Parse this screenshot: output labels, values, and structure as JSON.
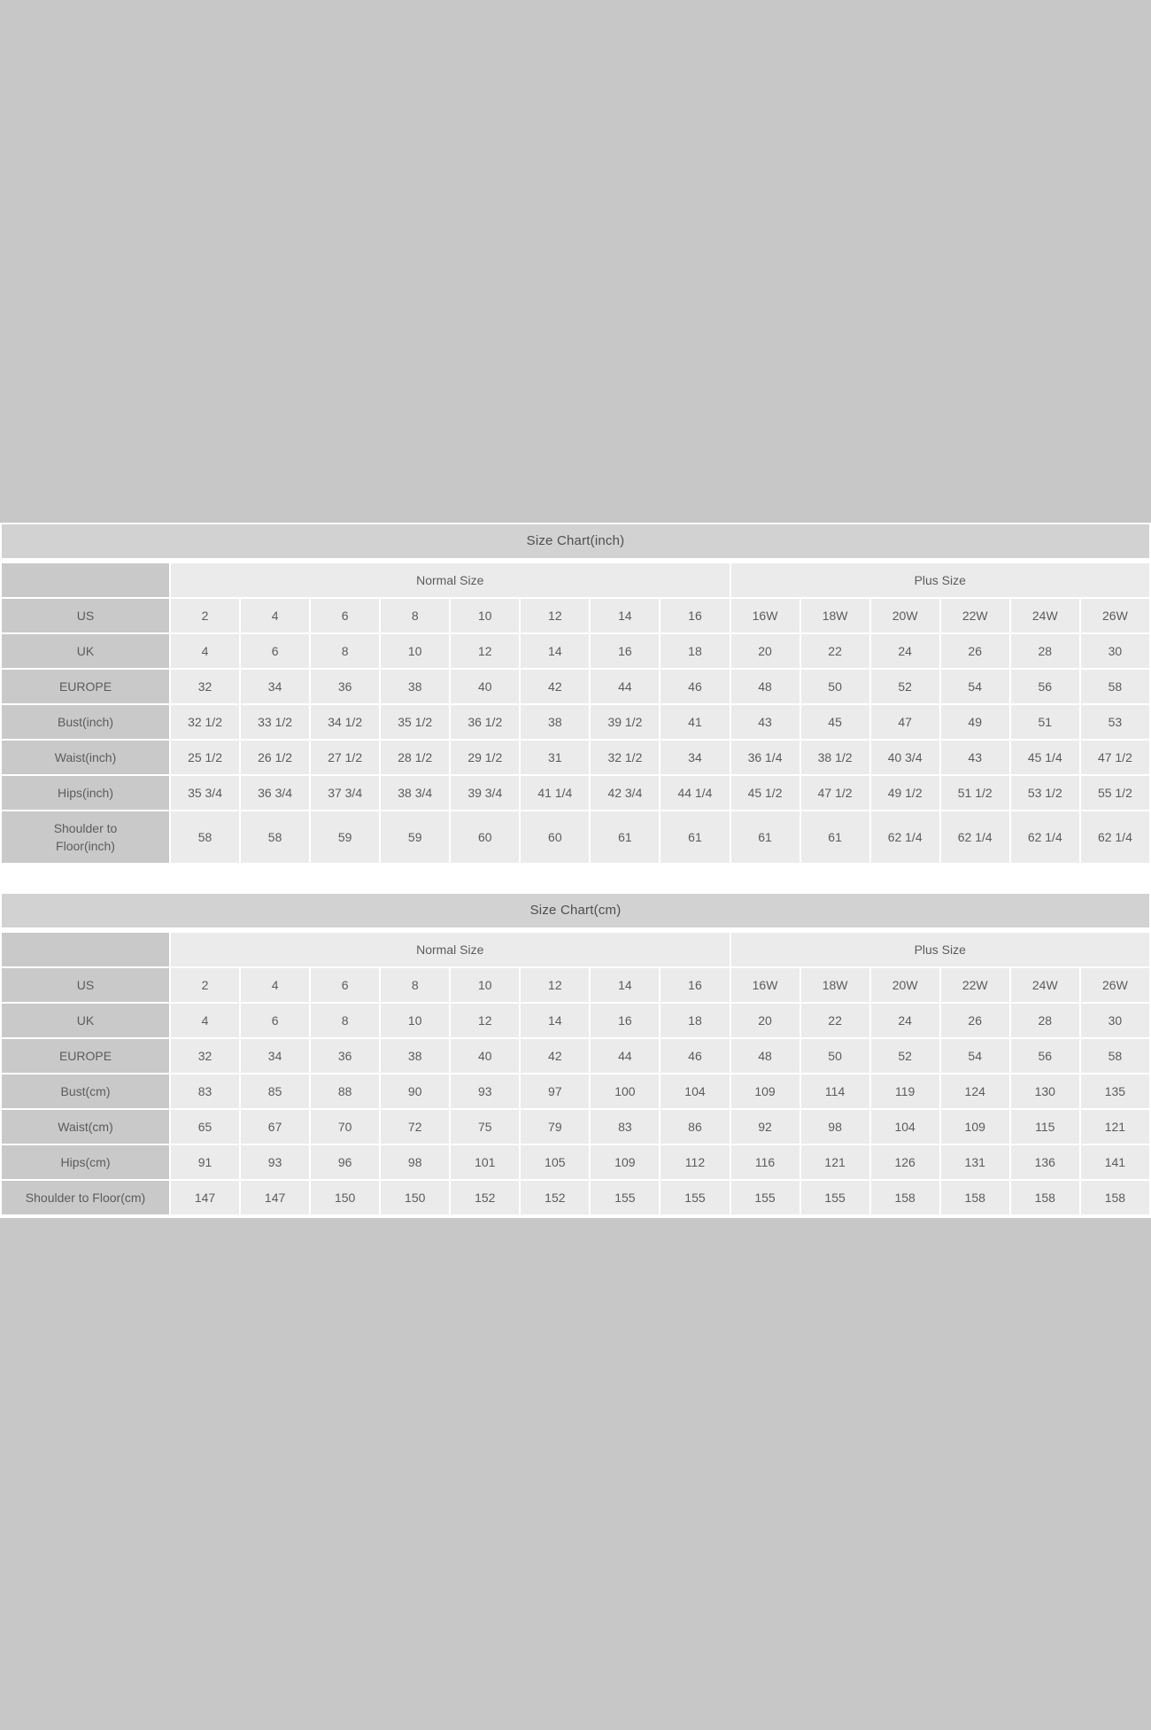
{
  "page": {
    "background_color": "#c7c7c7",
    "sheet_color": "#ffffff"
  },
  "colors": {
    "title_bar": "#d2d2d2",
    "group_header_cell": "#eaeaea",
    "data_cell": "#ebebeb",
    "label_cell": "#c9c9c9",
    "gridline": "#ffffff",
    "text": "#5c5c5c"
  },
  "chart_data": [
    {
      "type": "table",
      "title": "Size Chart(inch)",
      "column_groups": [
        {
          "label": "Normal Size",
          "span": 8
        },
        {
          "label": "Plus Size",
          "span": 6
        }
      ],
      "rows": [
        {
          "label": "US",
          "values": [
            "2",
            "4",
            "6",
            "8",
            "10",
            "12",
            "14",
            "16",
            "16W",
            "18W",
            "20W",
            "22W",
            "24W",
            "26W"
          ]
        },
        {
          "label": "UK",
          "values": [
            "4",
            "6",
            "8",
            "10",
            "12",
            "14",
            "16",
            "18",
            "20",
            "22",
            "24",
            "26",
            "28",
            "30"
          ]
        },
        {
          "label": "EUROPE",
          "values": [
            "32",
            "34",
            "36",
            "38",
            "40",
            "42",
            "44",
            "46",
            "48",
            "50",
            "52",
            "54",
            "56",
            "58"
          ]
        },
        {
          "label": "Bust(inch)",
          "values": [
            "32 1/2",
            "33 1/2",
            "34 1/2",
            "35 1/2",
            "36 1/2",
            "38",
            "39 1/2",
            "41",
            "43",
            "45",
            "47",
            "49",
            "51",
            "53"
          ]
        },
        {
          "label": "Waist(inch)",
          "values": [
            "25 1/2",
            "26 1/2",
            "27 1/2",
            "28 1/2",
            "29 1/2",
            "31",
            "32 1/2",
            "34",
            "36 1/4",
            "38 1/2",
            "40 3/4",
            "43",
            "45 1/4",
            "47 1/2"
          ]
        },
        {
          "label": "Hips(inch)",
          "values": [
            "35 3/4",
            "36 3/4",
            "37 3/4",
            "38 3/4",
            "39 3/4",
            "41 1/4",
            "42 3/4",
            "44 1/4",
            "45 1/2",
            "47 1/2",
            "49 1/2",
            "51 1/2",
            "53 1/2",
            "55 1/2"
          ]
        },
        {
          "label": "Shoulder to\nFloor(inch)",
          "tall": true,
          "values": [
            "58",
            "58",
            "59",
            "59",
            "60",
            "60",
            "61",
            "61",
            "61",
            "61",
            "62 1/4",
            "62 1/4",
            "62 1/4",
            "62 1/4"
          ]
        }
      ]
    },
    {
      "type": "table",
      "title": "Size Chart(cm)",
      "column_groups": [
        {
          "label": "Normal Size",
          "span": 8
        },
        {
          "label": "Plus Size",
          "span": 6
        }
      ],
      "rows": [
        {
          "label": "US",
          "values": [
            "2",
            "4",
            "6",
            "8",
            "10",
            "12",
            "14",
            "16",
            "16W",
            "18W",
            "20W",
            "22W",
            "24W",
            "26W"
          ]
        },
        {
          "label": "UK",
          "values": [
            "4",
            "6",
            "8",
            "10",
            "12",
            "14",
            "16",
            "18",
            "20",
            "22",
            "24",
            "26",
            "28",
            "30"
          ]
        },
        {
          "label": "EUROPE",
          "values": [
            "32",
            "34",
            "36",
            "38",
            "40",
            "42",
            "44",
            "46",
            "48",
            "50",
            "52",
            "54",
            "56",
            "58"
          ]
        },
        {
          "label": "Bust(cm)",
          "values": [
            "83",
            "85",
            "88",
            "90",
            "93",
            "97",
            "100",
            "104",
            "109",
            "114",
            "119",
            "124",
            "130",
            "135"
          ]
        },
        {
          "label": "Waist(cm)",
          "values": [
            "65",
            "67",
            "70",
            "72",
            "75",
            "79",
            "83",
            "86",
            "92",
            "98",
            "104",
            "109",
            "115",
            "121"
          ]
        },
        {
          "label": "Hips(cm)",
          "values": [
            "91",
            "93",
            "96",
            "98",
            "101",
            "105",
            "109",
            "112",
            "116",
            "121",
            "126",
            "131",
            "136",
            "141"
          ]
        },
        {
          "label": "Shoulder to Floor(cm)",
          "values": [
            "147",
            "147",
            "150",
            "150",
            "152",
            "152",
            "155",
            "155",
            "155",
            "155",
            "158",
            "158",
            "158",
            "158"
          ]
        }
      ]
    }
  ]
}
